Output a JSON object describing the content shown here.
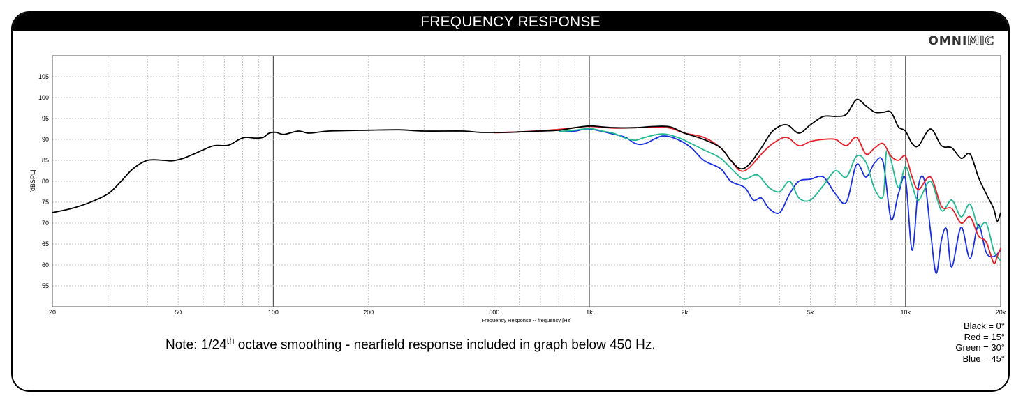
{
  "header": {
    "title": "FREQUENCY RESPONSE"
  },
  "logo": {
    "text_bold": "OMNI",
    "text_outline": "MIC"
  },
  "note": {
    "prefix": "Note: 1/24",
    "superscript": "th",
    "suffix": " octave smoothing - nearfield response included in graph below 450 Hz."
  },
  "legend": [
    {
      "label": "Black = 0°",
      "color": "#000000"
    },
    {
      "label": "Red = 15°",
      "color": "#e8202a"
    },
    {
      "label": "Green = 30°",
      "color": "#22b891"
    },
    {
      "label": "Blue = 45°",
      "color": "#1a2fe0"
    }
  ],
  "chart_data": {
    "type": "line",
    "xlabel": "Frequency Response -- frequency [Hz]",
    "ylabel": "[dBSPL]",
    "x_scale": "log",
    "xlim": [
      20,
      20000
    ],
    "ylim": [
      50,
      110
    ],
    "x_ticks": [
      {
        "value": 20,
        "label": "20"
      },
      {
        "value": 50,
        "label": "50"
      },
      {
        "value": 100,
        "label": "100"
      },
      {
        "value": 200,
        "label": "200"
      },
      {
        "value": 500,
        "label": "500"
      },
      {
        "value": 1000,
        "label": "1k"
      },
      {
        "value": 2000,
        "label": "2k"
      },
      {
        "value": 5000,
        "label": "5k"
      },
      {
        "value": 10000,
        "label": "10k"
      },
      {
        "value": 20000,
        "label": "20k"
      }
    ],
    "y_ticks": [
      55,
      60,
      65,
      70,
      75,
      80,
      85,
      90,
      95,
      100,
      105
    ],
    "grid": true,
    "series": [
      {
        "name": "Black = 0°",
        "color": "#000000",
        "points": [
          [
            20,
            72.5
          ],
          [
            23,
            73.5
          ],
          [
            26,
            74.8
          ],
          [
            30,
            77
          ],
          [
            33,
            80
          ],
          [
            36,
            83
          ],
          [
            40,
            85
          ],
          [
            45,
            85
          ],
          [
            48,
            84.9
          ],
          [
            52,
            85.5
          ],
          [
            56,
            86.5
          ],
          [
            60,
            87.5
          ],
          [
            65,
            88.5
          ],
          [
            72,
            88.6
          ],
          [
            78,
            90
          ],
          [
            82,
            90.5
          ],
          [
            88,
            90.3
          ],
          [
            93,
            90.5
          ],
          [
            97,
            91.5
          ],
          [
            102,
            91.7
          ],
          [
            108,
            91.2
          ],
          [
            120,
            92
          ],
          [
            130,
            91.5
          ],
          [
            150,
            92
          ],
          [
            200,
            92.2
          ],
          [
            250,
            92.3
          ],
          [
            300,
            92
          ],
          [
            400,
            92
          ],
          [
            450,
            91.7
          ],
          [
            550,
            91.7
          ],
          [
            600,
            91.8
          ],
          [
            700,
            92
          ],
          [
            800,
            92.2
          ],
          [
            900,
            92.8
          ],
          [
            1000,
            93.2
          ],
          [
            1100,
            93
          ],
          [
            1200,
            92.8
          ],
          [
            1400,
            92.8
          ],
          [
            1600,
            93.1
          ],
          [
            1800,
            93
          ],
          [
            2000,
            91.5
          ],
          [
            2300,
            90
          ],
          [
            2600,
            88
          ],
          [
            2800,
            85
          ],
          [
            3000,
            83
          ],
          [
            3200,
            84
          ],
          [
            3500,
            88
          ],
          [
            3800,
            92
          ],
          [
            4200,
            93.5
          ],
          [
            4600,
            91.5
          ],
          [
            5000,
            93.5
          ],
          [
            5500,
            95.5
          ],
          [
            6000,
            95.5
          ],
          [
            6500,
            96
          ],
          [
            7000,
            99.5
          ],
          [
            7500,
            98
          ],
          [
            8000,
            96.5
          ],
          [
            8500,
            96.5
          ],
          [
            9000,
            96.5
          ],
          [
            9500,
            93
          ],
          [
            10000,
            92
          ],
          [
            10500,
            89
          ],
          [
            11000,
            88.5
          ],
          [
            12000,
            92.5
          ],
          [
            13000,
            88.5
          ],
          [
            14000,
            88
          ],
          [
            15000,
            85.5
          ],
          [
            16000,
            86.5
          ],
          [
            17000,
            81
          ],
          [
            18000,
            77
          ],
          [
            19000,
            73.5
          ],
          [
            19500,
            70.5
          ],
          [
            20000,
            72.5
          ]
        ]
      },
      {
        "name": "Red = 15°",
        "color": "#e8202a",
        "points": [
          [
            500,
            91.6
          ],
          [
            600,
            91.8
          ],
          [
            700,
            92.1
          ],
          [
            800,
            92.4
          ],
          [
            900,
            92.8
          ],
          [
            1000,
            93.1
          ],
          [
            1200,
            92.7
          ],
          [
            1400,
            92.8
          ],
          [
            1600,
            92.9
          ],
          [
            1800,
            92.7
          ],
          [
            2000,
            91.5
          ],
          [
            2300,
            90.5
          ],
          [
            2600,
            88
          ],
          [
            2800,
            85
          ],
          [
            3000,
            82.5
          ],
          [
            3200,
            83.2
          ],
          [
            3500,
            86.5
          ],
          [
            3800,
            89
          ],
          [
            4200,
            90.5
          ],
          [
            4600,
            88.5
          ],
          [
            5000,
            89.5
          ],
          [
            5500,
            90
          ],
          [
            6000,
            90
          ],
          [
            6500,
            88.5
          ],
          [
            7000,
            90.5
          ],
          [
            7500,
            86.5
          ],
          [
            8000,
            88
          ],
          [
            8500,
            89
          ],
          [
            9000,
            86
          ],
          [
            9500,
            85
          ],
          [
            10000,
            86
          ],
          [
            10500,
            81
          ],
          [
            11000,
            78
          ],
          [
            12000,
            81
          ],
          [
            13000,
            74
          ],
          [
            14000,
            73.5
          ],
          [
            15000,
            70
          ],
          [
            16000,
            71.5
          ],
          [
            17000,
            67
          ],
          [
            18000,
            65.5
          ],
          [
            19000,
            60.5
          ],
          [
            19500,
            62
          ],
          [
            20000,
            64
          ]
        ]
      },
      {
        "name": "Green = 30°",
        "color": "#22b891",
        "points": [
          [
            800,
            91.9
          ],
          [
            900,
            92.2
          ],
          [
            1000,
            92.6
          ],
          [
            1100,
            92
          ],
          [
            1200,
            91.4
          ],
          [
            1300,
            90.3
          ],
          [
            1400,
            89.8
          ],
          [
            1500,
            90.5
          ],
          [
            1700,
            91.3
          ],
          [
            1900,
            90.5
          ],
          [
            2100,
            89
          ],
          [
            2300,
            87.5
          ],
          [
            2600,
            85.5
          ],
          [
            2900,
            82
          ],
          [
            3100,
            80.5
          ],
          [
            3400,
            81.5
          ],
          [
            3700,
            78.5
          ],
          [
            4000,
            77.5
          ],
          [
            4300,
            80
          ],
          [
            4600,
            76
          ],
          [
            5000,
            75.5
          ],
          [
            5500,
            79
          ],
          [
            6000,
            82.5
          ],
          [
            6500,
            81
          ],
          [
            7000,
            86
          ],
          [
            7500,
            84.5
          ],
          [
            8000,
            78
          ],
          [
            8500,
            76.5
          ],
          [
            8700,
            87
          ],
          [
            9000,
            85
          ],
          [
            9500,
            78.5
          ],
          [
            10000,
            83.5
          ],
          [
            10500,
            79
          ],
          [
            11000,
            75.5
          ],
          [
            12000,
            80
          ],
          [
            13000,
            73
          ],
          [
            14000,
            75.5
          ],
          [
            15000,
            71.5
          ],
          [
            16000,
            74.5
          ],
          [
            17000,
            69
          ],
          [
            18000,
            70
          ],
          [
            19000,
            63.5
          ],
          [
            19500,
            62
          ],
          [
            20000,
            61
          ]
        ]
      },
      {
        "name": "Blue = 45°",
        "color": "#1a2fe0",
        "points": [
          [
            800,
            91.9
          ],
          [
            900,
            92
          ],
          [
            1000,
            92.5
          ],
          [
            1200,
            91.2
          ],
          [
            1300,
            90.5
          ],
          [
            1400,
            89
          ],
          [
            1500,
            89
          ],
          [
            1700,
            90.8
          ],
          [
            1900,
            90
          ],
          [
            2100,
            88
          ],
          [
            2300,
            85
          ],
          [
            2600,
            83
          ],
          [
            2800,
            80
          ],
          [
            3100,
            78.5
          ],
          [
            3300,
            75.5
          ],
          [
            3500,
            76
          ],
          [
            3700,
            73.5
          ],
          [
            4000,
            72.5
          ],
          [
            4300,
            77
          ],
          [
            4600,
            80
          ],
          [
            5000,
            80.5
          ],
          [
            5500,
            81
          ],
          [
            6000,
            77
          ],
          [
            6500,
            75
          ],
          [
            7000,
            84
          ],
          [
            7500,
            81
          ],
          [
            8000,
            84.5
          ],
          [
            8500,
            84.5
          ],
          [
            9000,
            71
          ],
          [
            9500,
            77
          ],
          [
            10000,
            80.5
          ],
          [
            10500,
            63.5
          ],
          [
            11000,
            79
          ],
          [
            11500,
            80
          ],
          [
            12000,
            68
          ],
          [
            12500,
            58
          ],
          [
            13000,
            66
          ],
          [
            13500,
            68.5
          ],
          [
            14000,
            59.5
          ],
          [
            15000,
            69
          ],
          [
            16000,
            61.5
          ],
          [
            17000,
            69.5
          ],
          [
            18000,
            63
          ],
          [
            19000,
            62
          ],
          [
            20000,
            63.5
          ]
        ]
      }
    ]
  }
}
